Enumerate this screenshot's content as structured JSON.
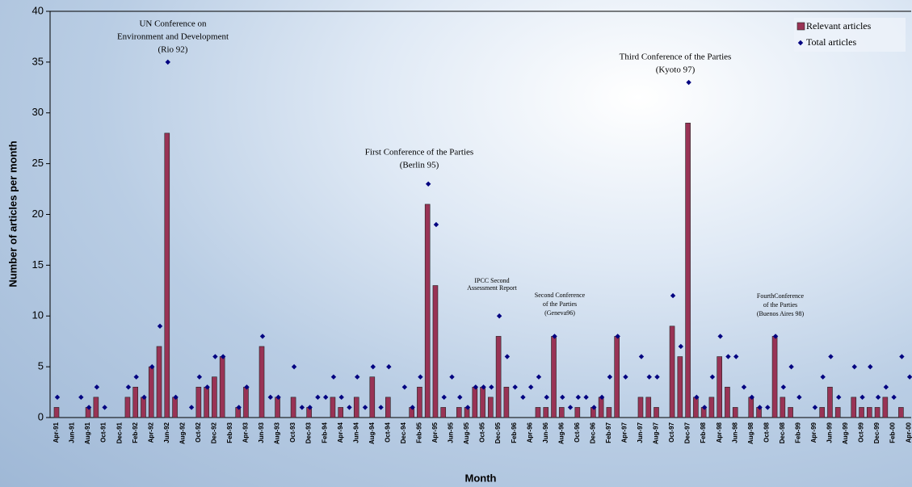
{
  "chart_data": {
    "type": "bar",
    "y_label": "Number of articles per month",
    "x_label": "Month",
    "categories": [
      "Apr-91",
      null,
      "Jun-91",
      null,
      "Aug-91",
      null,
      "Oct-91",
      null,
      "Dec-91",
      null,
      "Feb-92",
      null,
      "Apr-92",
      null,
      "Jun-92",
      null,
      "Aug-92",
      null,
      "Oct-92",
      null,
      "Dec-92",
      null,
      "Feb-93",
      null,
      "Apr-93",
      null,
      "Jun-93",
      null,
      "Aug-93",
      null,
      "Oct-93",
      null,
      "Dec-93",
      null,
      "Feb-94",
      null,
      "Apr-94",
      null,
      "Jun-94",
      null,
      "Aug-94",
      null,
      "Oct-94",
      null,
      "Dec-94",
      null,
      "Feb-95",
      null,
      "Apr-95",
      null,
      "Jun-95",
      null,
      "Aug-95",
      null,
      "Oct-95",
      null,
      "Dec-95",
      null,
      "Feb-96",
      null,
      "Apr-96",
      null,
      "Jun-96",
      null,
      "Aug-96",
      null,
      "Oct-96",
      null,
      "Dec-96",
      null,
      "Feb-97",
      null,
      "Apr-97",
      null,
      "Jun-97",
      null,
      "Aug-97",
      null,
      "Oct-97",
      null,
      "Dec-97",
      null,
      "Feb-98",
      null,
      "Apr-98",
      null,
      "Jun-98",
      null,
      "Aug-98",
      null,
      "Oct-98",
      null,
      "Dec-98",
      null,
      "Feb-99",
      null,
      "Apr-99",
      null,
      "Jun-99",
      null,
      "Aug-99",
      null,
      "Oct-99",
      null,
      "Dec-99",
      null,
      "Feb-00",
      null,
      "Apr-00"
    ],
    "series": [
      {
        "name": "Relevant articles",
        "type": "bar",
        "color": "#993355",
        "values": [
          1,
          0,
          0,
          0,
          1,
          2,
          0,
          0,
          0,
          2,
          3,
          2,
          5,
          7,
          28,
          2,
          0,
          0,
          3,
          3,
          4,
          6,
          0,
          1,
          3,
          0,
          7,
          0,
          2,
          0,
          2,
          0,
          1,
          0,
          0,
          2,
          1,
          0,
          2,
          0,
          4,
          0,
          2,
          0,
          0,
          1,
          3,
          21,
          13,
          1,
          0,
          1,
          1,
          3,
          3,
          2,
          8,
          3,
          0,
          0,
          0,
          1,
          1,
          8,
          1,
          0,
          1,
          0,
          1,
          2,
          1,
          8,
          0,
          0,
          2,
          2,
          1,
          0,
          9,
          6,
          29,
          2,
          1,
          2,
          6,
          3,
          1,
          0,
          2,
          1,
          0,
          8,
          2,
          1,
          0,
          0,
          0,
          1,
          3,
          1,
          0,
          2,
          1,
          1,
          1,
          2,
          0,
          1,
          0
        ]
      },
      {
        "name": "Total articles",
        "type": "scatter",
        "color": "#000080",
        "values": [
          2,
          null,
          null,
          2,
          1,
          3,
          1,
          null,
          null,
          3,
          4,
          2,
          5,
          9,
          35,
          2,
          null,
          1,
          4,
          3,
          6,
          6,
          null,
          1,
          3,
          null,
          8,
          2,
          2,
          null,
          5,
          1,
          1,
          2,
          2,
          4,
          2,
          1,
          4,
          1,
          5,
          1,
          5,
          null,
          3,
          1,
          4,
          23,
          19,
          2,
          4,
          2,
          1,
          3,
          3,
          3,
          10,
          6,
          3,
          2,
          3,
          4,
          2,
          8,
          2,
          1,
          2,
          2,
          1,
          2,
          4,
          8,
          4,
          null,
          6,
          4,
          4,
          null,
          12,
          7,
          33,
          2,
          1,
          4,
          8,
          6,
          6,
          3,
          2,
          1,
          1,
          8,
          3,
          5,
          2,
          null,
          1,
          4,
          6,
          2,
          null,
          5,
          2,
          5,
          2,
          3,
          2,
          6,
          4
        ]
      }
    ],
    "ylim": [
      0,
      40
    ],
    "yticks": [
      0,
      5,
      10,
      15,
      20,
      25,
      30,
      35,
      40
    ],
    "legend": "top-right",
    "annotations": [
      {
        "lines": [
          "UN Conference on",
          "Environment and Development",
          "(Rio 92)"
        ]
      },
      {
        "lines": [
          "First Conference of the Parties",
          "(Berlin 95)"
        ]
      },
      {
        "lines": [
          "IPCC Second",
          "Assessment Report"
        ]
      },
      {
        "lines": [
          "Second Conference",
          "of the Parties",
          "(Geneva96)"
        ]
      },
      {
        "lines": [
          "Third Conference of the Parties",
          "(Kyoto 97)"
        ]
      },
      {
        "lines": [
          "FourthConference",
          "of the Parties",
          "(Buenos Aires 98)"
        ]
      }
    ]
  }
}
